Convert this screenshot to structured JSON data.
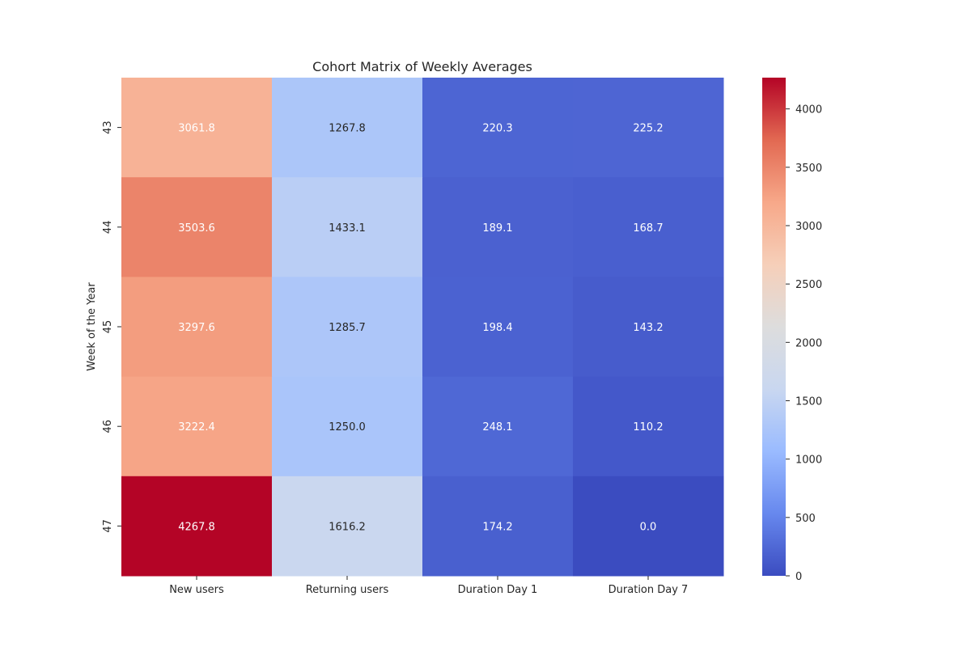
{
  "chart_data": {
    "type": "heatmap",
    "title": "Cohort Matrix of Weekly Averages",
    "xlabel": "",
    "ylabel": "Week of the Year",
    "columns": [
      "New users",
      "Returning users",
      "Duration Day 1",
      "Duration Day 7"
    ],
    "rows": [
      "43",
      "44",
      "45",
      "46",
      "47"
    ],
    "values": [
      [
        3061.8,
        1267.8,
        220.3,
        225.2
      ],
      [
        3503.6,
        1433.1,
        189.1,
        168.7
      ],
      [
        3297.6,
        1285.7,
        198.4,
        143.2
      ],
      [
        3222.4,
        1250.0,
        248.1,
        110.2
      ],
      [
        4267.8,
        1616.2,
        174.2,
        0.0
      ]
    ],
    "value_format": "0.0",
    "colormap": "coolwarm",
    "colormap_stops": [
      "#3b4cc0",
      "#6788ee",
      "#9abbff",
      "#c9d7f0",
      "#dddddd",
      "#f6cfb9",
      "#f7a889",
      "#e26952",
      "#b40426"
    ],
    "colorbar": {
      "min": 0,
      "max": 4267.8,
      "ticks": [
        0,
        500,
        1000,
        1500,
        2000,
        2500,
        3000,
        3500,
        4000
      ]
    }
  }
}
